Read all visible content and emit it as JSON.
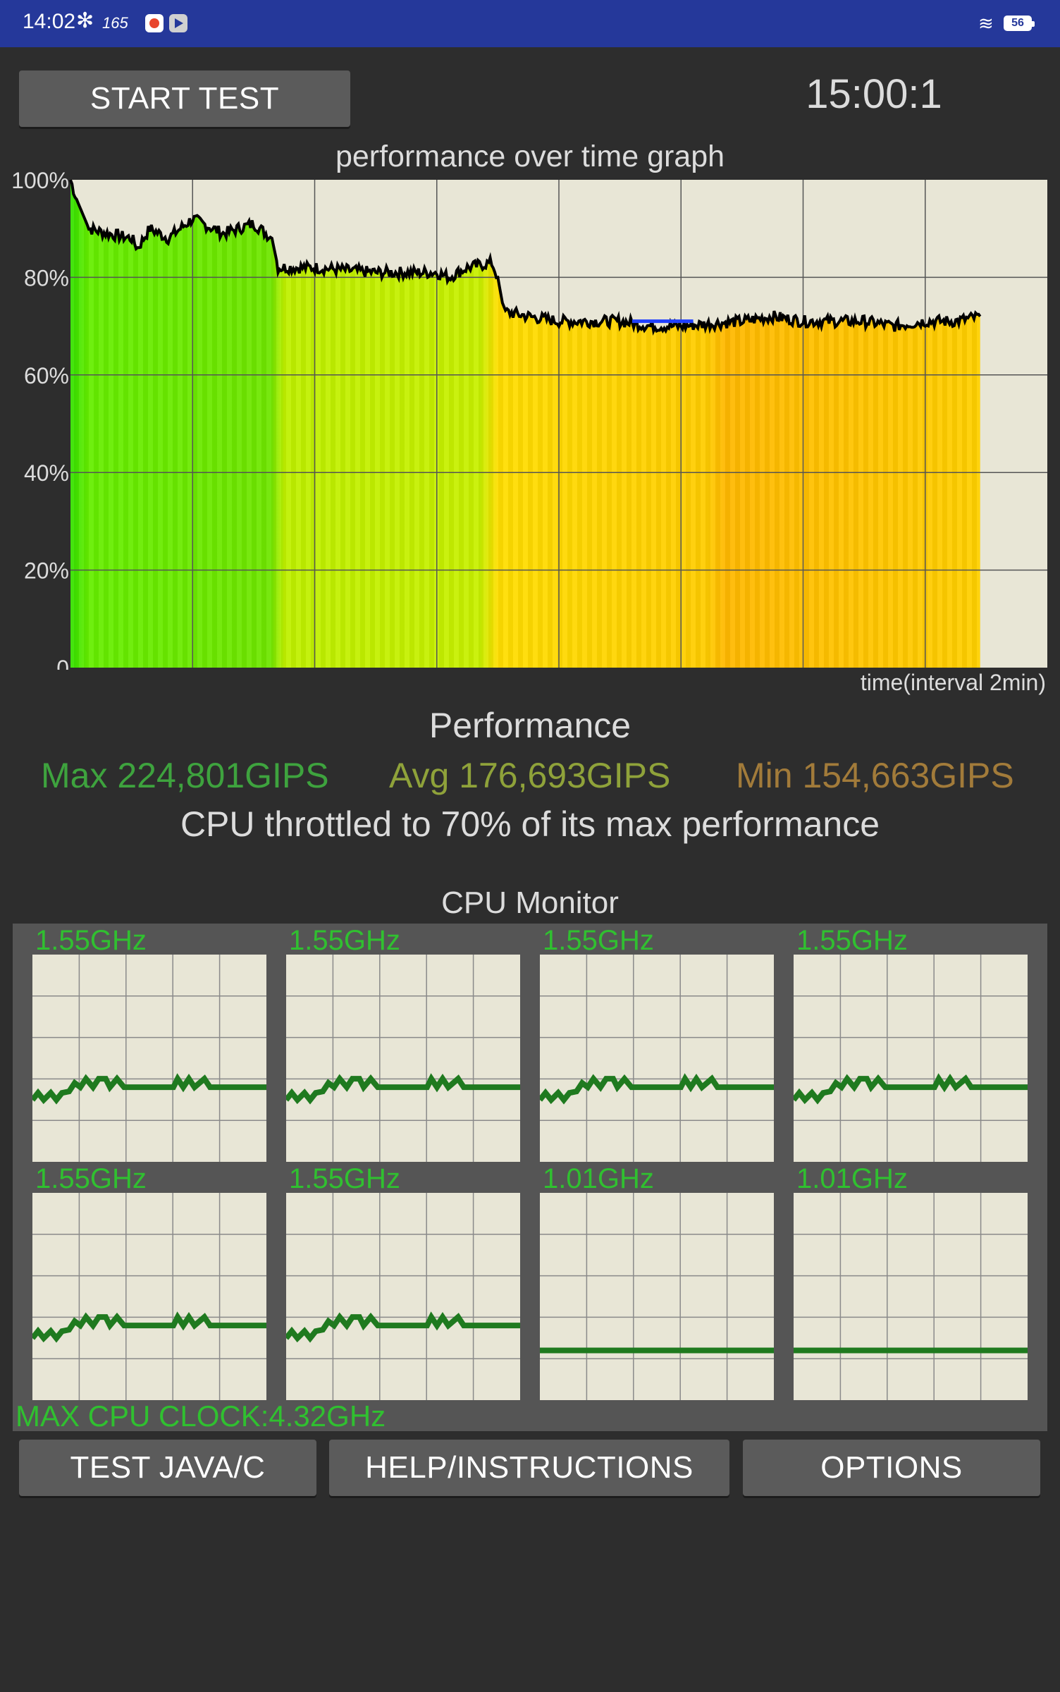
{
  "status_bar": {
    "time": "14:02",
    "refresh_rate": "165",
    "battery": "56",
    "icons": [
      "fan-icon",
      "app-icon-red",
      "app-icon-play",
      "wifi-icon",
      "battery-icon"
    ]
  },
  "start_button": {
    "label": "START TEST"
  },
  "timer": "15:00:1",
  "chart_data": {
    "type": "line",
    "title": "performance over time graph",
    "xlabel": "time(interval 2min)",
    "ylabel": "",
    "yticks": [
      "100%",
      "80%",
      "60%",
      "40%",
      "20%",
      "0"
    ],
    "ylim": [
      0,
      100
    ],
    "x_unit": "minutes",
    "xlim": [
      0,
      16
    ],
    "grid": true,
    "series": [
      {
        "x": [
          0,
          0.1,
          0.3,
          0.6,
          1.0,
          1.1,
          1.3,
          1.6,
          2.0,
          2.5,
          3.0,
          3.3,
          3.4,
          3.6,
          4.0,
          5.0,
          6.0,
          6.2,
          6.5,
          6.9,
          7.0,
          7.1,
          7.5,
          8.0,
          9.0,
          9.5,
          10.0,
          11.0,
          11.5,
          12.0,
          13.0,
          13.5,
          14.0,
          14.5,
          14.9
        ],
        "y": [
          100,
          96,
          90,
          89,
          88,
          86,
          90,
          88,
          92,
          89,
          91,
          88,
          82,
          82,
          82,
          81,
          81,
          80,
          82,
          83,
          80,
          73,
          72,
          71,
          71,
          70,
          70,
          71,
          72,
          71,
          71,
          70,
          71,
          71,
          72
        ]
      }
    ],
    "highlight_segment": {
      "x": [
        9.2,
        10.2
      ],
      "y": 71
    }
  },
  "performance": {
    "title": "Performance",
    "max": "Max 224,801GIPS",
    "avg": "Avg 176,693GIPS",
    "min": "Min 154,663GIPS",
    "throttle_message": "CPU throttled to 70% of its max performance"
  },
  "cpu_monitor": {
    "title": "CPU Monitor",
    "cores": [
      {
        "freq": "1.55GHz",
        "level": 0.36
      },
      {
        "freq": "1.55GHz",
        "level": 0.36
      },
      {
        "freq": "1.55GHz",
        "level": 0.36
      },
      {
        "freq": "1.55GHz",
        "level": 0.36
      },
      {
        "freq": "1.55GHz",
        "level": 0.36
      },
      {
        "freq": "1.55GHz",
        "level": 0.36
      },
      {
        "freq": "1.01GHz",
        "level": 0.24
      },
      {
        "freq": "1.01GHz",
        "level": 0.24
      }
    ],
    "max_clock": "MAX CPU CLOCK:4.32GHz"
  },
  "buttons": {
    "java": "TEST JAVA/C",
    "help": "HELP/INSTRUCTIONS",
    "options": "OPTIONS"
  }
}
